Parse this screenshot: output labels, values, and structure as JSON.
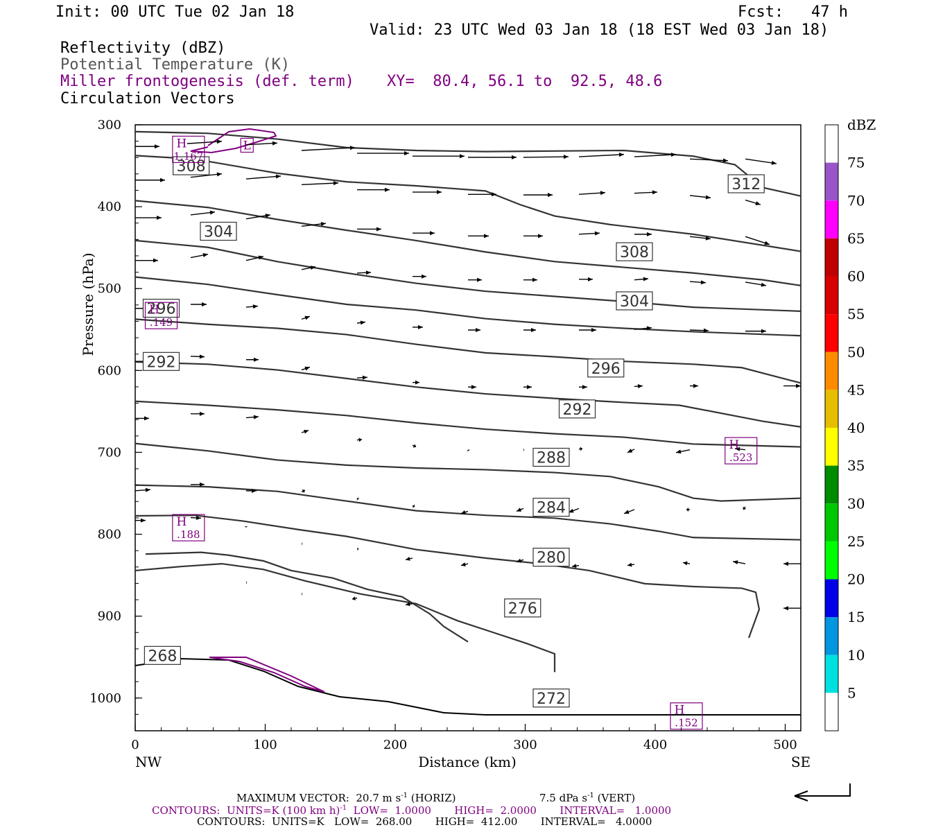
{
  "header": {
    "init": "Init: 00 UTC Tue 02 Jan 18",
    "fcst": "Fcst:   47 h",
    "valid": "Valid: 23 UTC Wed 03 Jan 18 (18 EST Wed 03 Jan 18)",
    "fields": [
      "Reflectivity (dBZ)",
      "Potential Temperature (K)",
      "Miller frontogenesis (def. term)",
      "Circulation Vectors"
    ],
    "xy": "XY=  80.4, 56.1 to  92.5, 48.6"
  },
  "footer": {
    "max_vector": "MAXIMUM VECTOR:  20.7 m s",
    "max_vector_sup": "-1",
    "max_vector_horiz": " (HORIZ)",
    "vert": "7.5 dPa s",
    "vert_sup": "-1",
    "vert_tail": " (VERT)",
    "contours_purple_a": "CONTOURS:  UNITS=K (100 km h)",
    "contours_purple_sup": "-1",
    "contours_purple_b": "  LOW=  1.0000       HIGH=  2.0000       INTERVAL=   1.0000",
    "contours_black": "CONTOURS:  UNITS=K   LOW=  268.00       HIGH=  412.00       INTERVAL=   4.0000"
  },
  "colors": {
    "purple": "#800080",
    "theta": "#333333",
    "scale": [
      "#ffffff",
      "#00e0e0",
      "#0096e0",
      "#0000e8",
      "#00ff00",
      "#00c800",
      "#008c00",
      "#ffff00",
      "#e6be00",
      "#ff8c00",
      "#ff0000",
      "#d70000",
      "#c00000",
      "#ff00ff",
      "#9955c9",
      "#ffffff"
    ]
  },
  "chart_data": {
    "type": "cross-section",
    "xlabel": "Distance (km)",
    "ylabel": "Pressure (hPa)",
    "xlim": [
      0,
      512
    ],
    "ylim": [
      300,
      1040
    ],
    "x_ticks": [
      "0",
      "100",
      "200",
      "300",
      "400",
      "500"
    ],
    "y_ticks": [
      "300",
      "400",
      "500",
      "600",
      "700",
      "800",
      "900",
      "1000"
    ],
    "x_end_labels": {
      "left": "NW",
      "right": "SE"
    },
    "colorbar": {
      "unit": "dBZ",
      "labels": [
        "5",
        "10",
        "15",
        "20",
        "25",
        "30",
        "35",
        "40",
        "45",
        "50",
        "55",
        "60",
        "65",
        "70",
        "75"
      ]
    },
    "theta_labels": [
      {
        "text": "308",
        "x": 43,
        "p": 350
      },
      {
        "text": "312",
        "x": 470,
        "p": 372
      },
      {
        "text": "304",
        "x": 64,
        "p": 430
      },
      {
        "text": "308",
        "x": 384,
        "p": 455
      },
      {
        "text": "304",
        "x": 384,
        "p": 515
      },
      {
        "text": "296",
        "x": 20,
        "p": 524
      },
      {
        "text": "292",
        "x": 20,
        "p": 589
      },
      {
        "text": "296",
        "x": 362,
        "p": 597
      },
      {
        "text": "292",
        "x": 340,
        "p": 647
      },
      {
        "text": "288",
        "x": 320,
        "p": 706
      },
      {
        "text": "284",
        "x": 320,
        "p": 767
      },
      {
        "text": "280",
        "x": 320,
        "p": 828
      },
      {
        "text": "276",
        "x": 298,
        "p": 890
      },
      {
        "text": "268",
        "x": 21,
        "p": 948
      },
      {
        "text": "272",
        "x": 320,
        "p": 1000
      }
    ],
    "front_labels": [
      {
        "kind": "H",
        "value": "1.167",
        "x": 41,
        "p": 330
      },
      {
        "kind": "L",
        "value": "",
        "x": 86,
        "p": 325
      },
      {
        "kind": "H",
        "value": ".149",
        "x": 20,
        "p": 533
      },
      {
        "kind": "H",
        "value": ".523",
        "x": 466,
        "p": 698
      },
      {
        "kind": "H",
        "value": ".188",
        "x": 41,
        "p": 792
      },
      {
        "kind": "H",
        "value": ".152",
        "x": 424,
        "p": 1022
      }
    ]
  }
}
